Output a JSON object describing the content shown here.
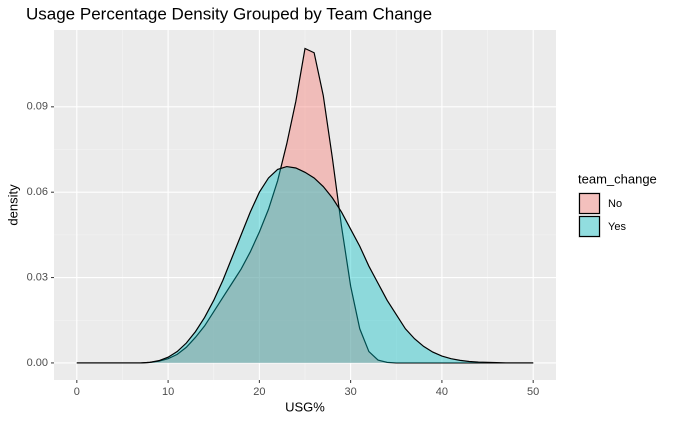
{
  "chart_data": {
    "type": "density",
    "title": "Usage Percentage Density Grouped by Team Change",
    "x_label": "USG%",
    "y_label": "density",
    "legend_title": "team_change",
    "x": [
      0,
      1,
      2,
      3,
      4,
      5,
      6,
      7,
      8,
      9,
      10,
      11,
      12,
      13,
      14,
      15,
      16,
      17,
      18,
      19,
      20,
      21,
      22,
      23,
      24,
      25,
      26,
      27,
      28,
      29,
      30,
      31,
      32,
      33,
      34,
      35,
      36,
      37,
      38,
      39,
      40,
      41,
      42,
      43,
      44,
      45,
      46,
      47,
      48,
      49,
      50
    ],
    "series": [
      {
        "name": "No",
        "color": "#F8766D",
        "values": [
          0,
          0,
          0,
          0,
          0,
          0,
          0,
          0,
          0.0002,
          0.0006,
          0.0015,
          0.003,
          0.0055,
          0.009,
          0.013,
          0.018,
          0.023,
          0.028,
          0.033,
          0.039,
          0.046,
          0.054,
          0.064,
          0.077,
          0.092,
          0.1105,
          0.109,
          0.094,
          0.072,
          0.048,
          0.027,
          0.012,
          0.004,
          0.001,
          0.0002,
          0,
          0,
          0,
          0,
          0,
          0,
          0,
          0,
          0,
          0,
          0,
          0,
          0,
          0,
          0,
          0
        ]
      },
      {
        "name": "Yes",
        "color": "#00BFC4",
        "values": [
          0,
          0,
          0,
          0,
          0,
          0,
          0,
          0,
          0.0002,
          0.0008,
          0.002,
          0.004,
          0.007,
          0.011,
          0.016,
          0.022,
          0.029,
          0.037,
          0.045,
          0.053,
          0.06,
          0.065,
          0.068,
          0.069,
          0.0685,
          0.067,
          0.065,
          0.062,
          0.058,
          0.053,
          0.047,
          0.041,
          0.034,
          0.028,
          0.022,
          0.017,
          0.012,
          0.0085,
          0.0058,
          0.0038,
          0.0024,
          0.0015,
          0.0009,
          0.0005,
          0.0003,
          0.0002,
          0.0001,
          0,
          0,
          0,
          0
        ]
      }
    ],
    "xlim": [
      -2.5,
      52.5
    ],
    "xticks": [
      0,
      10,
      20,
      30,
      40,
      50
    ],
    "ylim": [
      -0.006,
      0.117
    ],
    "yticks": [
      {
        "value": 0,
        "label": "0.00"
      },
      {
        "value": 0.03,
        "label": "0.03"
      },
      {
        "value": 0.06,
        "label": "0.06"
      },
      {
        "value": 0.09,
        "label": "0.09"
      }
    ],
    "grid": true,
    "legend": "right"
  }
}
